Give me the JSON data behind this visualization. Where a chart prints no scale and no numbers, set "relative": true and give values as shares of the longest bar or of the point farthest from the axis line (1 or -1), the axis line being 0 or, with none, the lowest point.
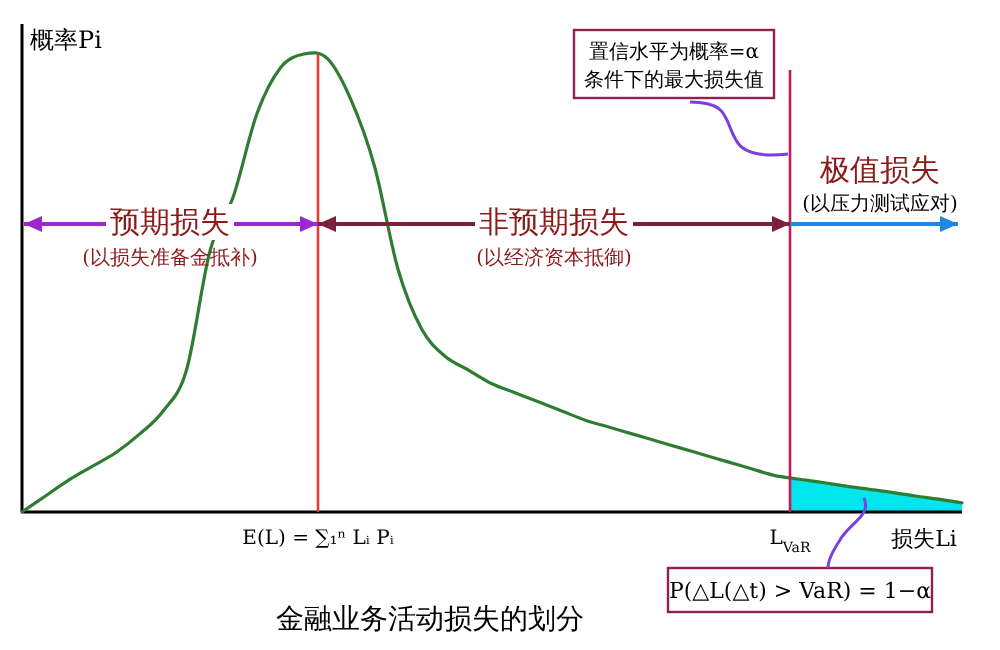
{
  "chart_data": {
    "type": "line",
    "relative": true,
    "title": "金融业务活动损失的划分",
    "xlabel": "损失Li",
    "ylabel": "概率Pi",
    "categories": [
      null,
      null,
      null,
      null,
      null,
      null,
      null,
      null,
      null,
      null,
      null,
      null,
      null,
      null,
      null,
      null,
      null,
      null,
      null,
      null,
      null,
      null,
      null,
      null,
      null,
      null,
      null,
      null,
      null,
      null,
      null,
      null,
      null,
      null,
      null,
      null,
      null,
      null,
      null,
      null,
      null
    ],
    "series": [
      {
        "color": "#2e7d32",
        "values": [
          0,
          0.035,
          0.07,
          0.1,
          0.13,
          0.17,
          0.22,
          0.31,
          0.57,
          0.69,
          0.87,
          0.97,
          1,
          0.99,
          0.9,
          0.755,
          0.53,
          0.4,
          0.34,
          0.31,
          0.28,
          0.26,
          0.24,
          0.22,
          0.2,
          0.185,
          0.17,
          0.155,
          0.14,
          0.125,
          0.11,
          0.095,
          0.08,
          0.072,
          0.065,
          0.057,
          0.05,
          0.043,
          0.035,
          0.028,
          0.02
        ]
      }
    ],
    "annotations": [
      "预期损失",
      "(以损失准备金抵补)",
      "非预期损失",
      "(以经济资本抵御)",
      "极值损失",
      "(以压力测试应对)",
      "置信水平为概率=α\n条件下的最大损失值",
      "E(L) = ∑₁ⁿ Lᵢ Pᵢ",
      "L$_{VaR}$",
      "P(△L(△t) > VaR) = 1−α"
    ]
  }
}
